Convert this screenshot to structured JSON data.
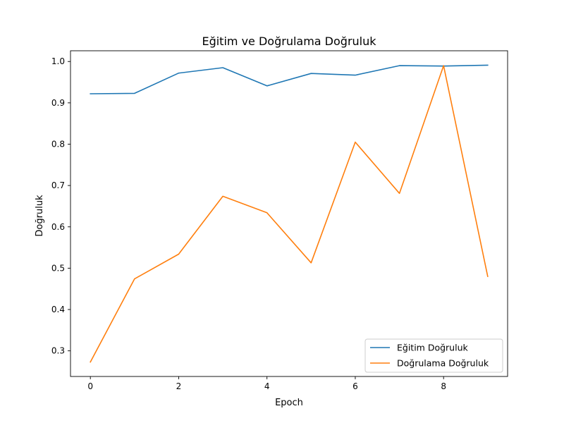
{
  "chart_data": {
    "type": "line",
    "title": "Eğitim ve Doğrulama Doğruluk",
    "xlabel": "Epoch",
    "ylabel": "Doğruluk",
    "x": [
      0,
      1,
      2,
      3,
      4,
      5,
      6,
      7,
      8,
      9
    ],
    "xlim": [
      -0.45,
      9.45
    ],
    "ylim": [
      0.238,
      1.026
    ],
    "xticks": [
      0,
      2,
      4,
      6,
      8
    ],
    "yticks": [
      0.3,
      0.4,
      0.5,
      0.6,
      0.7,
      0.8,
      0.9,
      1.0
    ],
    "xtick_labels": [
      "0",
      "2",
      "4",
      "6",
      "8"
    ],
    "ytick_labels": [
      "0.3",
      "0.4",
      "0.5",
      "0.6",
      "0.7",
      "0.8",
      "0.9",
      "1.0"
    ],
    "grid": false,
    "legend_position": "lower-right",
    "series": [
      {
        "name": "Eğitim Doğruluk",
        "color": "#1f77b4",
        "values": [
          0.922,
          0.923,
          0.972,
          0.985,
          0.941,
          0.971,
          0.967,
          0.99,
          0.989,
          0.991
        ]
      },
      {
        "name": "Doğrulama Doğruluk",
        "color": "#ff7f0e",
        "values": [
          0.273,
          0.474,
          0.534,
          0.674,
          0.634,
          0.513,
          0.805,
          0.681,
          0.99,
          0.48
        ]
      }
    ]
  }
}
